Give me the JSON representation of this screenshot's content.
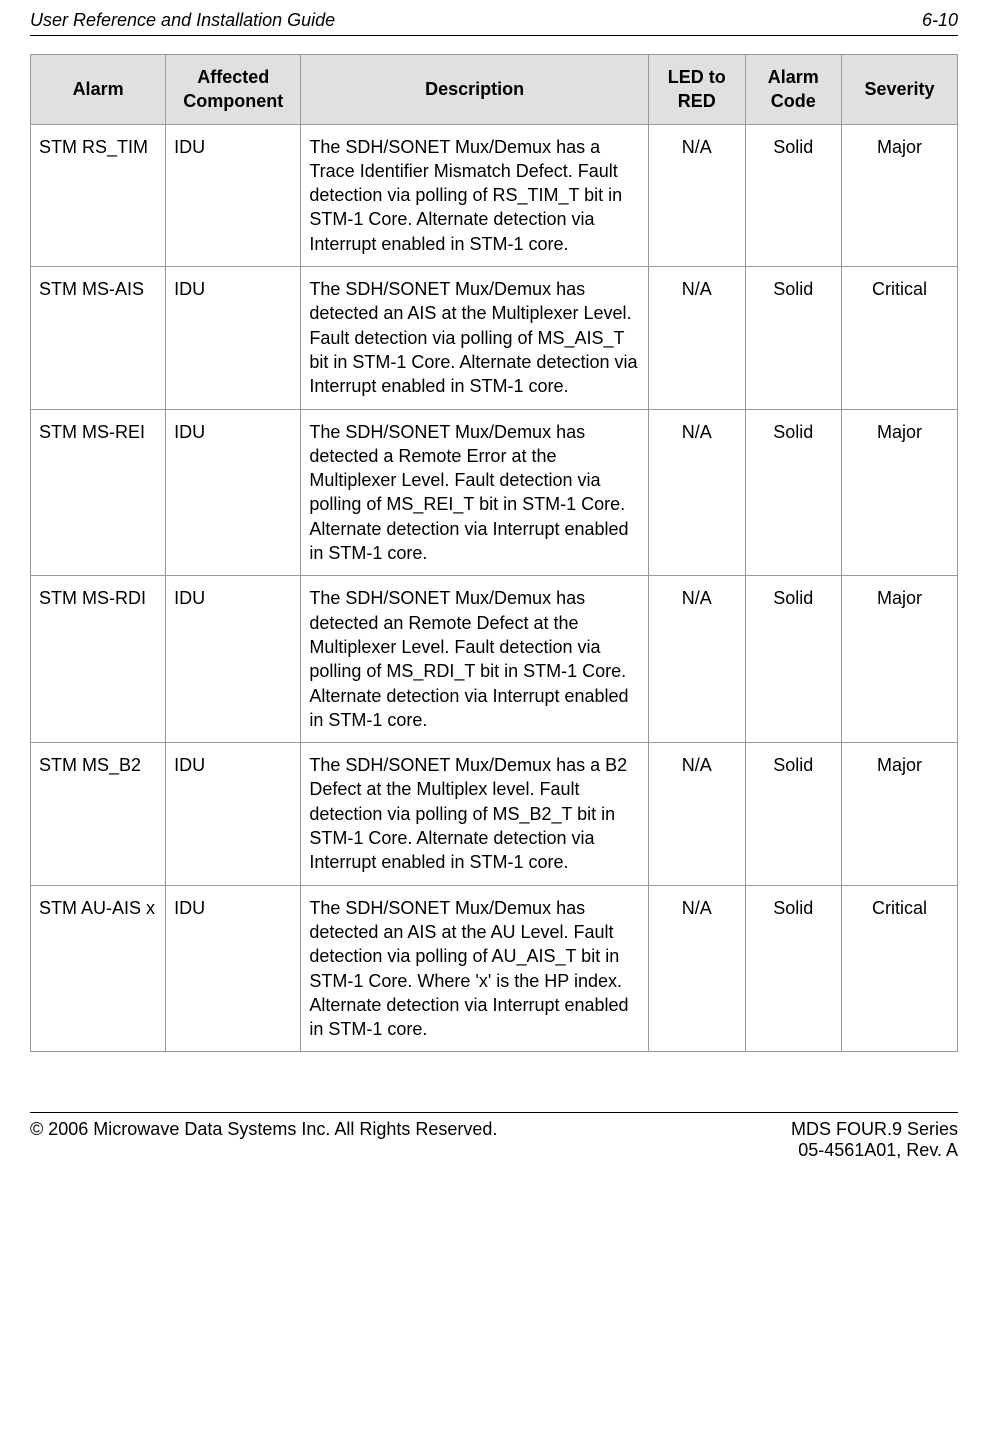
{
  "header": {
    "title": "User Reference and Installation Guide",
    "page": "6-10"
  },
  "table": {
    "columns": [
      "Alarm",
      "Affected Component",
      "Description",
      "LED to RED",
      "Alarm Code",
      "Severity"
    ],
    "column_bg_color": "#e0e0e0",
    "border_color": "#999999",
    "rows": [
      {
        "alarm": "STM RS_TIM",
        "component": "IDU",
        "description": "The SDH/SONET Mux/Demux has a Trace Identifier Mismatch Defect. Fault detection via polling of RS_TIM_T bit in STM-1 Core. Alternate detection via Interrupt enabled in STM-1 core.",
        "led": "N/A",
        "code": "Solid",
        "severity": "Major"
      },
      {
        "alarm": "STM MS-AIS",
        "component": "IDU",
        "description": "The SDH/SONET Mux/Demux has detected an AIS at the Multiplexer Level. Fault detection via polling of MS_AIS_T bit in STM-1 Core. Alternate detection via Interrupt enabled in STM-1 core.",
        "led": "N/A",
        "code": "Solid",
        "severity": "Critical"
      },
      {
        "alarm": "STM MS-REI",
        "component": "IDU",
        "description": "The SDH/SONET Mux/Demux has detected a Remote Error at the Multiplexer Level. Fault detection via polling of MS_REI_T bit in STM-1 Core. Alternate detection via Interrupt enabled in STM-1 core.",
        "led": "N/A",
        "code": "Solid",
        "severity": "Major"
      },
      {
        "alarm": "STM MS-RDI",
        "component": "IDU",
        "description": "The SDH/SONET Mux/Demux has detected an Remote Defect at the Multiplexer Level. Fault detection via polling of MS_RDI_T bit in STM-1 Core. Alternate detection via Interrupt enabled in STM-1 core.",
        "led": "N/A",
        "code": "Solid",
        "severity": "Major"
      },
      {
        "alarm": "STM MS_B2",
        "component": "IDU",
        "description": "The SDH/SONET Mux/Demux has a B2 Defect at the Multiplex level. Fault detection via polling of MS_B2_T bit in STM-1 Core. Alternate detection via Interrupt enabled in STM-1 core.",
        "led": "N/A",
        "code": "Solid",
        "severity": "Major"
      },
      {
        "alarm": "STM AU-AIS x",
        "component": "IDU",
        "description": "The SDH/SONET Mux/Demux has detected an AIS at the AU Level. Fault detection via polling of AU_AIS_T bit in STM-1 Core. Where 'x' is the HP index. Alternate detection via Interrupt enabled in STM-1 core.",
        "led": "N/A",
        "code": "Solid",
        "severity": "Critical"
      }
    ]
  },
  "footer": {
    "left": "© 2006 Microwave Data Systems Inc.  All Rights Reserved.",
    "right_line1": "MDS FOUR.9 Series",
    "right_line2": "05-4561A01, Rev. A"
  }
}
